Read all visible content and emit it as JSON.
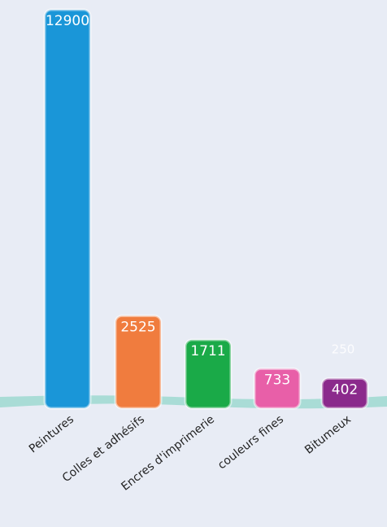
{
  "chart_data": {
    "type": "bar",
    "categories": [
      "Peintures",
      "Colles et adhésifs",
      "Encres d'imprimerie",
      "couleurs fines",
      "Bitumeux"
    ],
    "values": [
      12900,
      2525,
      1711,
      733,
      402
    ],
    "colors": [
      "#1a96d8",
      "#f07c3e",
      "#1aaa48",
      "#e85fa8",
      "#8b2a8c"
    ],
    "annotation": "250"
  }
}
